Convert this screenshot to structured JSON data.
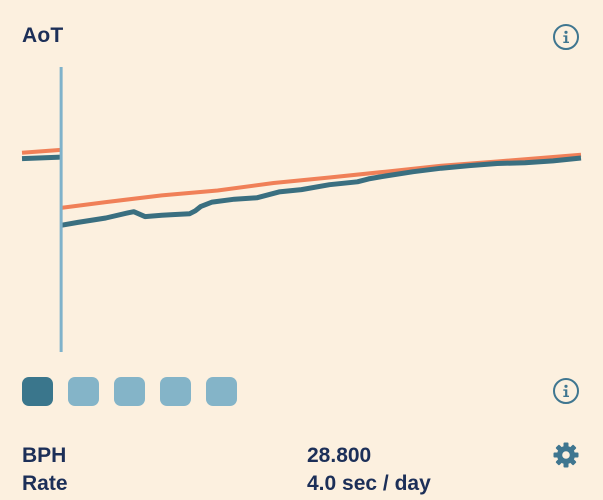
{
  "header": {
    "title": "AoT"
  },
  "colors": {
    "background": "#fcf0df",
    "text": "#1c2f58",
    "series_measured": "#3a6f80",
    "series_reference": "#f08058",
    "cursor_line": "#7fb2ca",
    "swatch_active": "#3a768c",
    "swatch_inactive": "#84b4c8"
  },
  "icons": {
    "info_top": "info-icon",
    "info_bottom": "info-icon",
    "settings": "gear-icon"
  },
  "swatches": {
    "count": 5,
    "active_index": 0
  },
  "readouts": [
    {
      "label": "BPH",
      "value": "28.800"
    },
    {
      "label": "Rate",
      "value": "4.0 sec / day"
    }
  ],
  "chart_data": {
    "type": "line",
    "title": "",
    "xlabel": "",
    "ylabel": "",
    "grid": false,
    "xlim": [
      0,
      100
    ],
    "ylim": [
      0,
      100
    ],
    "cursor_x": 7,
    "series": [
      {
        "name": "",
        "color": "#f08058",
        "stroke": 4,
        "segments": [
          [
            [
              0,
              68
            ],
            [
              7,
              69
            ]
          ],
          [
            [
              7,
              49
            ],
            [
              15,
              51
            ],
            [
              25,
              53.3
            ],
            [
              35,
              55
            ],
            [
              45,
              57.6
            ],
            [
              55,
              59.5
            ],
            [
              65,
              61.5
            ],
            [
              75,
              63.5
            ],
            [
              85,
              65
            ],
            [
              100,
              67.3
            ]
          ]
        ]
      },
      {
        "name": "",
        "color": "#3a6f80",
        "stroke": 5,
        "segments": [
          [
            [
              0,
              66
            ],
            [
              7,
              66.5
            ]
          ],
          [
            [
              7,
              43
            ],
            [
              10,
              44
            ],
            [
              15,
              45.5
            ],
            [
              19,
              47.3
            ],
            [
              20,
              47.7
            ],
            [
              22,
              46
            ],
            [
              25,
              46.5
            ],
            [
              27,
              46.7
            ],
            [
              30,
              47
            ],
            [
              31,
              48
            ],
            [
              32,
              49.5
            ],
            [
              34,
              51
            ],
            [
              38,
              52
            ],
            [
              42,
              52.5
            ],
            [
              46,
              54.5
            ],
            [
              50,
              55.3
            ],
            [
              55,
              57
            ],
            [
              60,
              58
            ],
            [
              62,
              59
            ],
            [
              65,
              60
            ],
            [
              70,
              61.5
            ],
            [
              75,
              62.7
            ],
            [
              80,
              63.6
            ],
            [
              85,
              64.3
            ],
            [
              90,
              64.6
            ],
            [
              95,
              65.2
            ],
            [
              100,
              66.2
            ]
          ]
        ]
      }
    ]
  }
}
